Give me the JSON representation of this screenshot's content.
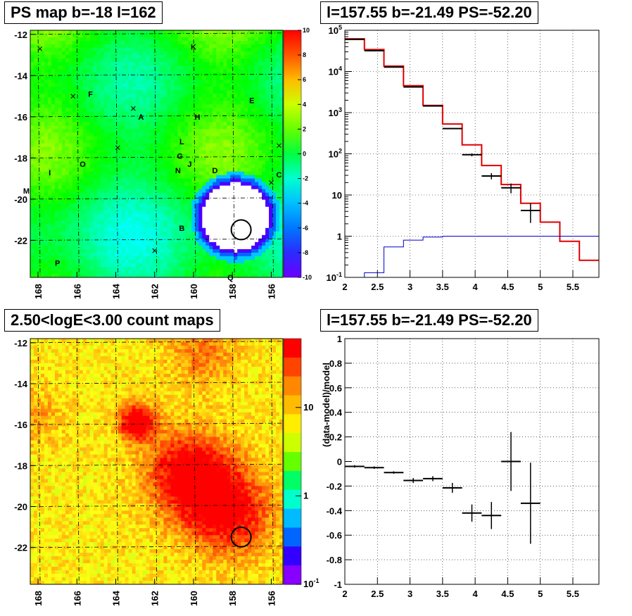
{
  "panels": {
    "top_left_title": "PS map b=-18 l=162",
    "top_right_title": "l=157.55 b=-21.49 PS=-52.20",
    "bottom_left_title": "2.50<logE<3.00 count maps",
    "bottom_right_title": "l=157.55 b=-21.49 PS=-52.20"
  },
  "chart_data": [
    {
      "type": "heatmap",
      "title": "PS map b=-18 l=162",
      "x_ticks": [
        "168",
        "166",
        "164",
        "162",
        "160",
        "158",
        "156"
      ],
      "y_ticks": [
        "-12",
        "-14",
        "-16",
        "-18",
        "-20",
        "-22"
      ],
      "xlim": [
        168.4,
        155.4
      ],
      "ylim": [
        -23.8,
        -11.8
      ],
      "colorbar": {
        "range": [
          -10,
          10
        ],
        "ticks": [
          "10",
          "8",
          "6",
          "4",
          "2",
          "0",
          "-2",
          "-4",
          "-6",
          "-8",
          "-10"
        ]
      },
      "source_labels": [
        {
          "label": "K",
          "l": 160.0,
          "b": -12.6
        },
        {
          "label": "F",
          "l": 165.3,
          "b": -14.9
        },
        {
          "label": "E",
          "l": 157.0,
          "b": -15.2
        },
        {
          "label": "A",
          "l": 162.7,
          "b": -16.0
        },
        {
          "label": "H",
          "l": 159.8,
          "b": -16.0
        },
        {
          "label": "L",
          "l": 160.6,
          "b": -17.2
        },
        {
          "label": "G",
          "l": 160.7,
          "b": -17.9
        },
        {
          "label": "J",
          "l": 160.2,
          "b": -18.3
        },
        {
          "label": "N",
          "l": 160.8,
          "b": -18.6
        },
        {
          "label": "O",
          "l": 165.7,
          "b": -18.3
        },
        {
          "label": "I",
          "l": 167.4,
          "b": -18.7
        },
        {
          "label": "D",
          "l": 158.9,
          "b": -18.6
        },
        {
          "label": "C",
          "l": 155.6,
          "b": -18.8
        },
        {
          "label": "M",
          "l": 168.6,
          "b": -19.6
        },
        {
          "label": "B",
          "l": 160.6,
          "b": -21.4
        },
        {
          "label": "P",
          "l": 167.0,
          "b": -23.1
        },
        {
          "label": "Q",
          "l": 158.1,
          "b": -23.8
        }
      ],
      "crosses": [
        {
          "l": 167.9,
          "b": -12.7
        },
        {
          "l": 166.2,
          "b": -15.0
        },
        {
          "l": 163.9,
          "b": -17.5
        },
        {
          "l": 163.1,
          "b": -15.6
        },
        {
          "l": 162.0,
          "b": -22.5
        },
        {
          "l": 156.0,
          "b": -19.2
        },
        {
          "l": 155.6,
          "b": -17.4
        }
      ],
      "circle": {
        "l": 157.55,
        "b": -21.49
      }
    },
    {
      "type": "line",
      "title": "l=157.55 b=-21.49 PS=-52.20",
      "y_scale": "log",
      "xlim": [
        2,
        5.9
      ],
      "ylim": [
        0.1,
        100000
      ],
      "x_ticks": [
        "2",
        "2.5",
        "3",
        "3.5",
        "4",
        "4.5",
        "5",
        "5.5"
      ],
      "y_ticks": [
        "10^-1",
        "1",
        "10",
        "10^2",
        "10^3",
        "10^4",
        "10^5"
      ],
      "series": [
        {
          "color": "#e00000",
          "bin_edges": [
            2.0,
            2.3,
            2.6,
            2.9,
            3.2,
            3.5,
            3.8,
            4.1,
            4.4,
            4.7,
            5.0,
            5.3,
            5.6,
            5.9
          ],
          "values": [
            62000,
            34000,
            13500,
            4500,
            1500,
            530,
            165,
            52,
            18,
            6.3,
            2.2,
            0.75,
            0.26
          ]
        },
        {
          "color": "#0000cc",
          "bin_edges": [
            2.0,
            2.3,
            2.6,
            2.9,
            3.2,
            3.5,
            5.9
          ],
          "values": [
            0.1,
            0.13,
            0.55,
            0.8,
            0.95,
            1.0
          ]
        },
        {
          "color": "#000000",
          "points": [
            {
              "x": 2.15,
              "y": 60000,
              "xerr": 0.15,
              "yerr": 0
            },
            {
              "x": 2.45,
              "y": 32000,
              "xerr": 0.15,
              "yerr": 0
            },
            {
              "x": 2.75,
              "y": 12800,
              "xerr": 0.15,
              "yerr": 0
            },
            {
              "x": 3.05,
              "y": 4200,
              "xerr": 0.15,
              "yerr": 0
            },
            {
              "x": 3.35,
              "y": 1450,
              "xerr": 0.15,
              "yerr": 0
            },
            {
              "x": 3.65,
              "y": 410,
              "xerr": 0.15,
              "yerr": 0
            },
            {
              "x": 3.95,
              "y": 95,
              "xerr": 0.15,
              "yerr": 8
            },
            {
              "x": 4.25,
              "y": 29,
              "xerr": 0.15,
              "yerr": 5
            },
            {
              "x": 4.55,
              "y": 15,
              "xerr": 0.15,
              "yerr": 4
            },
            {
              "x": 4.85,
              "y": 4.2,
              "xerr": 0.15,
              "yerr": 2.1
            }
          ]
        }
      ]
    },
    {
      "type": "heatmap",
      "title": "2.50<logE<3.00 count maps",
      "x_ticks": [
        "168",
        "166",
        "164",
        "162",
        "160",
        "158",
        "156"
      ],
      "y_ticks": [
        "-12",
        "-14",
        "-16",
        "-18",
        "-20",
        "-22"
      ],
      "xlim": [
        168.4,
        155.4
      ],
      "ylim": [
        -23.8,
        -11.8
      ],
      "colorbar": {
        "scale": "log",
        "range": [
          0.1,
          60
        ],
        "ticks": [
          "10",
          "1",
          "10^-1"
        ]
      },
      "circle": {
        "l": 157.55,
        "b": -21.49
      }
    },
    {
      "type": "scatter",
      "title": "l=157.55 b=-21.49 PS=-52.20",
      "ylabel": "(data-model)/model",
      "xlim": [
        2,
        5.9
      ],
      "ylim": [
        -1,
        1
      ],
      "x_ticks": [
        "2",
        "2.5",
        "3",
        "3.5",
        "4",
        "4.5",
        "5",
        "5.5"
      ],
      "y_ticks": [
        "1",
        "0.8",
        "0.6",
        "0.4",
        "0.2",
        "0",
        "-0.2",
        "-0.4",
        "-0.6",
        "-0.8",
        "-1"
      ],
      "points": [
        {
          "x": 2.15,
          "y": -0.04,
          "xerr": 0.15,
          "yerr": 0.01
        },
        {
          "x": 2.45,
          "y": -0.05,
          "xerr": 0.15,
          "yerr": 0.01
        },
        {
          "x": 2.75,
          "y": -0.09,
          "xerr": 0.15,
          "yerr": 0.01
        },
        {
          "x": 3.05,
          "y": -0.155,
          "xerr": 0.15,
          "yerr": 0.02
        },
        {
          "x": 3.35,
          "y": -0.14,
          "xerr": 0.15,
          "yerr": 0.02
        },
        {
          "x": 3.65,
          "y": -0.215,
          "xerr": 0.15,
          "yerr": 0.04
        },
        {
          "x": 3.95,
          "y": -0.42,
          "xerr": 0.15,
          "yerr": 0.07
        },
        {
          "x": 4.25,
          "y": -0.44,
          "xerr": 0.15,
          "yerr": 0.11
        },
        {
          "x": 4.55,
          "y": 0.0,
          "xerr": 0.15,
          "yerr": 0.24
        },
        {
          "x": 4.85,
          "y": -0.34,
          "xerr": 0.15,
          "yerr": 0.33
        }
      ]
    }
  ]
}
